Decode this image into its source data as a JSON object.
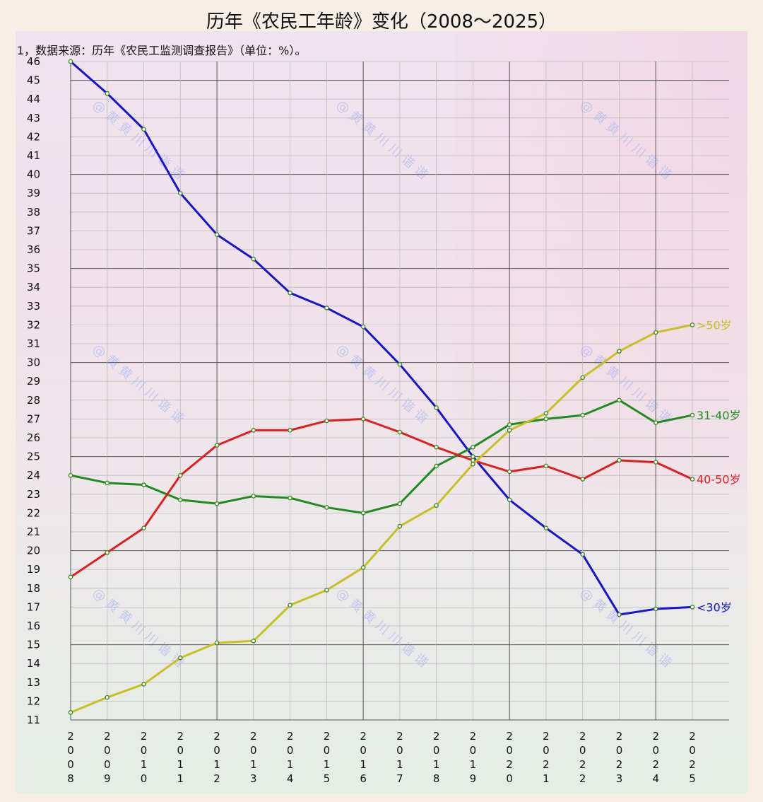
{
  "title": "历年《农民工年龄》变化（2008～2025）",
  "note": "1，数据来源：历年《农民工监测调查报告》（单位：%）。",
  "watermark": "@黄黄川川谐谐",
  "chart_data": {
    "type": "line",
    "title": "历年《农民工年龄》变化（2008～2025）",
    "xlabel": "",
    "ylabel": "",
    "x": [
      "2008",
      "2009",
      "2010",
      "2011",
      "2012",
      "2013",
      "2014",
      "2015",
      "2016",
      "2017",
      "2018",
      "2019",
      "2020",
      "2021",
      "2022",
      "2023",
      "2024",
      "2025"
    ],
    "ylim": [
      11,
      46
    ],
    "yticks": [
      "11",
      "12",
      "13",
      "14",
      "15",
      "16",
      "17",
      "18",
      "19",
      "20",
      "21",
      "22",
      "23",
      "24",
      "25",
      "26",
      "27",
      "28",
      "29",
      "30",
      "31",
      "32",
      "33",
      "34",
      "35",
      "36",
      "37",
      "38",
      "39",
      "40",
      "41",
      "42",
      "43",
      "44",
      "45",
      "46"
    ],
    "grid": true,
    "legend": "end-of-line labels",
    "series": [
      {
        "name": "<30岁",
        "color": "#1414d2",
        "values": [
          46.0,
          44.3,
          42.4,
          39.0,
          36.8,
          35.5,
          33.7,
          32.9,
          31.9,
          29.9,
          27.6,
          25.0,
          22.7,
          21.2,
          19.8,
          16.6,
          16.9,
          17.0
        ]
      },
      {
        "name": "31-40岁",
        "color": "#1e8c1e",
        "values": [
          24.0,
          23.6,
          23.5,
          22.7,
          22.5,
          22.9,
          22.8,
          22.3,
          22.0,
          22.5,
          24.5,
          25.5,
          26.7,
          27.0,
          27.2,
          28.0,
          26.8,
          27.2
        ]
      },
      {
        "name": "40-50岁",
        "color": "#e01e1e",
        "values": [
          18.6,
          19.9,
          21.2,
          24.0,
          25.6,
          26.4,
          26.4,
          26.9,
          27.0,
          26.3,
          25.5,
          24.8,
          24.2,
          24.5,
          23.8,
          24.8,
          24.7,
          23.8
        ]
      },
      {
        "name": ">50岁",
        "color": "#c8c020",
        "values": [
          11.4,
          12.2,
          12.9,
          14.3,
          15.1,
          15.2,
          17.1,
          17.9,
          19.1,
          21.3,
          22.4,
          24.6,
          26.4,
          27.3,
          29.2,
          30.6,
          31.6,
          32.0
        ]
      }
    ]
  }
}
